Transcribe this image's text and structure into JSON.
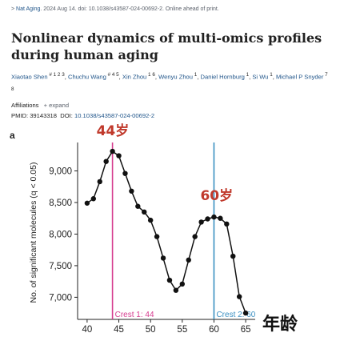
{
  "citation": {
    "journal": "Nat Aging",
    "details": ". 2024 Aug 14. doi: 10.1038/s43587-024-00692-2. Online ahead of print."
  },
  "article": {
    "title": "Nonlinear dynamics of multi-omics profiles during human aging",
    "authors": [
      {
        "name": "Xiaotao Shen",
        "sup": "# 1 2 3"
      },
      {
        "name": "Chuchu Wang",
        "sup": "# 4 5"
      },
      {
        "name": "Xin Zhou",
        "sup": "1 6"
      },
      {
        "name": "Wenyu Zhou",
        "sup": "1"
      },
      {
        "name": "Daniel Hornburg",
        "sup": "1"
      },
      {
        "name": "Si Wu",
        "sup": "1"
      },
      {
        "name": "Michael P Snyder",
        "sup": "7 8"
      }
    ],
    "affiliations_label": "Affiliations",
    "expand_label": "+ expand",
    "pmid": "PMID: 39143318",
    "doi_label": "DOI:",
    "doi": "10.1038/s43587-024-00692-2"
  },
  "panel_label": "a",
  "annotations": {
    "peak1": "44岁",
    "peak2": "60岁",
    "x_title_overlay": "年龄"
  },
  "colors": {
    "crest1": "#d63c8f",
    "crest2": "#3a8fc1",
    "annotation": "#c0392b",
    "link": "#20558a"
  },
  "chart_data": {
    "type": "line",
    "ylabel": "No. of significant molecules (q < 0.05)",
    "xlim": [
      38.5,
      66.5
    ],
    "ylim": [
      6650,
      9450
    ],
    "xticks": [
      40,
      45,
      50,
      55,
      60,
      65
    ],
    "yticks": [
      7000,
      7500,
      8000,
      8500,
      9000
    ],
    "ytick_labels": [
      "7,000",
      "7,500",
      "8,000",
      "8,500",
      "9,000"
    ],
    "x": [
      40,
      41,
      42,
      43,
      44,
      45,
      46,
      47,
      48,
      49,
      50,
      51,
      52,
      53,
      54,
      55,
      56,
      57,
      58,
      59,
      60,
      61,
      62,
      63,
      64,
      65
    ],
    "y": [
      8490,
      8560,
      8830,
      9150,
      9310,
      9240,
      8960,
      8680,
      8440,
      8350,
      8220,
      7960,
      7620,
      7270,
      7110,
      7210,
      7590,
      7960,
      8190,
      8240,
      8270,
      8250,
      8160,
      7650,
      7010,
      6750
    ],
    "vlines": [
      {
        "x": 44,
        "label": "Crest 1: 44"
      },
      {
        "x": 60,
        "label": "Crest 2: 60"
      }
    ]
  }
}
